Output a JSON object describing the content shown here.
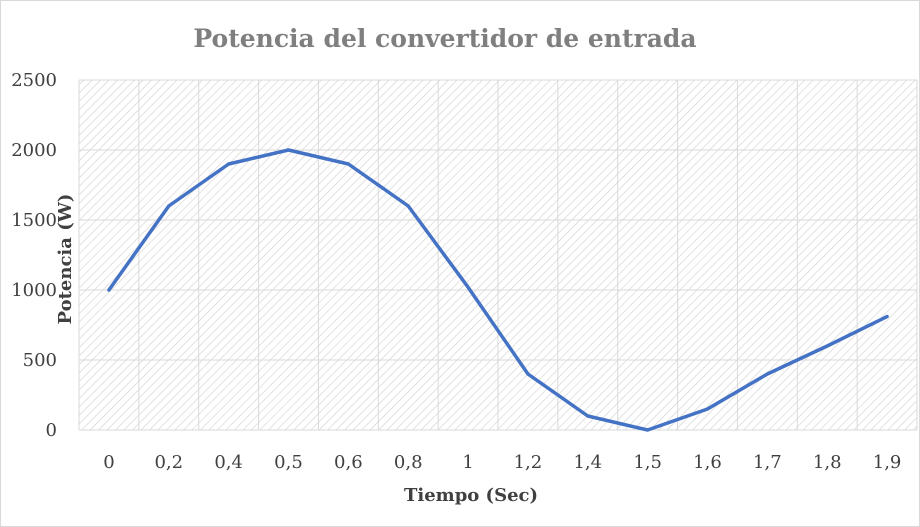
{
  "chart_data": {
    "type": "line",
    "title": "Potencia del convertidor de entrada",
    "xlabel": "Tiempo (Sec)",
    "ylabel": "Potencia (W)",
    "categories": [
      "0",
      "0,2",
      "0,4",
      "0,5",
      "0,6",
      "0,8",
      "1",
      "1,2",
      "1,4",
      "1,5",
      "1,6",
      "1,7",
      "1,8",
      "1,9"
    ],
    "y_ticks": [
      "0",
      "500",
      "1000",
      "1500",
      "2000",
      "2500"
    ],
    "ylim": [
      0,
      2500
    ],
    "series": [
      {
        "values": [
          1000,
          1600,
          1900,
          2000,
          1900,
          1600,
          1020,
          400,
          100,
          0,
          150,
          400,
          600,
          810
        ]
      }
    ],
    "grid": true,
    "legend": "none",
    "colors": {
      "line": "#4472c4",
      "grid": "#d9d9d9",
      "hatch": "#cfcfcf"
    }
  }
}
